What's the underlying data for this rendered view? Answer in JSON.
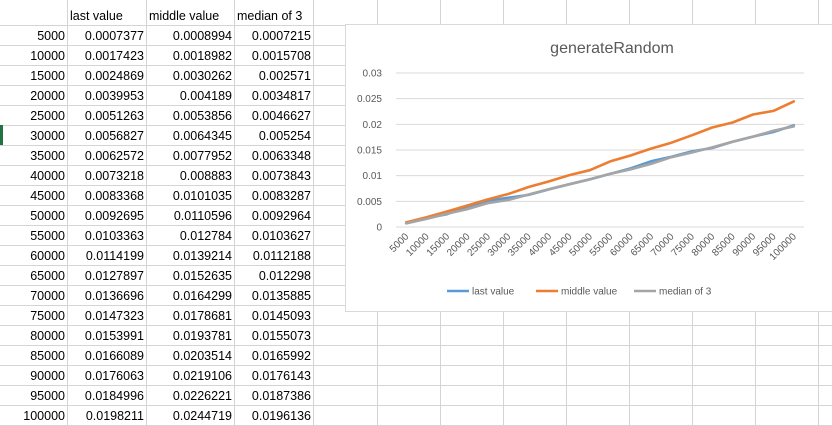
{
  "table": {
    "headers": [
      "last value",
      "middle value",
      "median of 3"
    ],
    "rows": [
      [
        "5000",
        "0.0007377",
        "0.0008994",
        "0.0007215"
      ],
      [
        "10000",
        "0.0017423",
        "0.0018982",
        "0.0015708"
      ],
      [
        "15000",
        "0.0024869",
        "0.0030262",
        "0.002571"
      ],
      [
        "20000",
        "0.0039953",
        "0.004189",
        "0.0034817"
      ],
      [
        "25000",
        "0.0051263",
        "0.0053856",
        "0.0046627"
      ],
      [
        "30000",
        "0.0056827",
        "0.0064345",
        "0.005254"
      ],
      [
        "35000",
        "0.0062572",
        "0.0077952",
        "0.0063348"
      ],
      [
        "40000",
        "0.0073218",
        "0.008883",
        "0.0073843"
      ],
      [
        "45000",
        "0.0083368",
        "0.0101035",
        "0.0083287"
      ],
      [
        "50000",
        "0.0092695",
        "0.0110596",
        "0.0092964"
      ],
      [
        "55000",
        "0.0103363",
        "0.012784",
        "0.0103627"
      ],
      [
        "60000",
        "0.0114199",
        "0.0139214",
        "0.0112188"
      ],
      [
        "65000",
        "0.0127897",
        "0.0152635",
        "0.012298"
      ],
      [
        "70000",
        "0.0136696",
        "0.0164299",
        "0.0135885"
      ],
      [
        "75000",
        "0.0147323",
        "0.0178681",
        "0.0145093"
      ],
      [
        "80000",
        "0.0153991",
        "0.0193781",
        "0.0155073"
      ],
      [
        "85000",
        "0.0166089",
        "0.0203514",
        "0.0165992"
      ],
      [
        "90000",
        "0.0176063",
        "0.0219106",
        "0.0176143"
      ],
      [
        "95000",
        "0.0184996",
        "0.0226221",
        "0.0187386"
      ],
      [
        "100000",
        "0.0198211",
        "0.0244719",
        "0.0196136"
      ]
    ]
  },
  "chart_data": {
    "type": "line",
    "title": "generateRandom",
    "x": [
      "5000",
      "10000",
      "15000",
      "20000",
      "25000",
      "30000",
      "35000",
      "40000",
      "45000",
      "50000",
      "55000",
      "60000",
      "65000",
      "70000",
      "75000",
      "80000",
      "85000",
      "90000",
      "95000",
      "100000"
    ],
    "series": [
      {
        "name": "last value",
        "color": "#5b9bd5",
        "values": [
          0.0007377,
          0.0017423,
          0.0024869,
          0.0039953,
          0.0051263,
          0.0056827,
          0.0062572,
          0.0073218,
          0.0083368,
          0.0092695,
          0.0103363,
          0.0114199,
          0.0127897,
          0.0136696,
          0.0147323,
          0.0153991,
          0.0166089,
          0.0176063,
          0.0184996,
          0.0198211
        ]
      },
      {
        "name": "middle value",
        "color": "#ed7d31",
        "values": [
          0.0008994,
          0.0018982,
          0.0030262,
          0.004189,
          0.0053856,
          0.0064345,
          0.0077952,
          0.008883,
          0.0101035,
          0.0110596,
          0.012784,
          0.0139214,
          0.0152635,
          0.0164299,
          0.0178681,
          0.0193781,
          0.0203514,
          0.0219106,
          0.0226221,
          0.0244719
        ]
      },
      {
        "name": "median of 3",
        "color": "#a5a5a5",
        "values": [
          0.0007215,
          0.0015708,
          0.002571,
          0.0034817,
          0.0046627,
          0.005254,
          0.0063348,
          0.0073843,
          0.0083287,
          0.0092964,
          0.0103627,
          0.0112188,
          0.012298,
          0.0135885,
          0.0145093,
          0.0155073,
          0.0165992,
          0.0176143,
          0.0187386,
          0.0196136
        ]
      }
    ],
    "yticks": [
      "0",
      "0.005",
      "0.01",
      "0.015",
      "0.02",
      "0.025",
      "0.03"
    ],
    "ylim": [
      0,
      0.03
    ],
    "grid": true,
    "legend": "bottom"
  }
}
